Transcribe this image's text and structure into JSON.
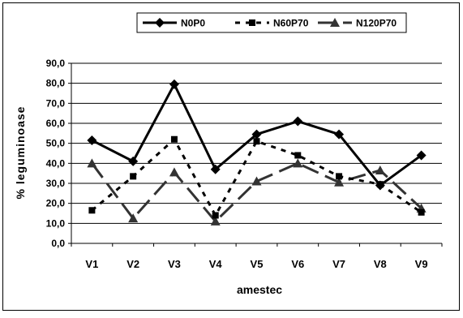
{
  "chart_data": {
    "type": "line",
    "categories": [
      "V1",
      "V2",
      "V3",
      "V4",
      "V5",
      "V6",
      "V7",
      "V8",
      "V9"
    ],
    "series": [
      {
        "name": "N0P0",
        "values": [
          51.5,
          41.0,
          79.5,
          37.0,
          54.5,
          61.0,
          54.5,
          29.0,
          44.0
        ],
        "color": "#000000",
        "marker": "diamond",
        "dash": "solid"
      },
      {
        "name": "N60P70",
        "values": [
          16.5,
          33.5,
          52.0,
          14.0,
          51.0,
          44.0,
          33.5,
          29.5,
          15.5
        ],
        "color": "#000000",
        "marker": "square",
        "dash": "dotted"
      },
      {
        "name": "N120P70",
        "values": [
          40.0,
          12.5,
          35.5,
          11.0,
          31.0,
          40.0,
          30.5,
          36.5,
          17.5
        ],
        "color": "#333333",
        "marker": "triangle",
        "dash": "longdash"
      }
    ],
    "xlabel": "amestec",
    "ylabel": "% leguminoase",
    "ylim": [
      0,
      90
    ],
    "yticks": [
      0,
      10,
      20,
      30,
      40,
      50,
      60,
      70,
      80,
      90
    ],
    "ytick_labels": [
      "0,0",
      "10,0",
      "20,0",
      "30,0",
      "40,0",
      "50,0",
      "60,0",
      "70,0",
      "80,0",
      "90,0"
    ],
    "grid": true,
    "legend_position": "top-center"
  }
}
